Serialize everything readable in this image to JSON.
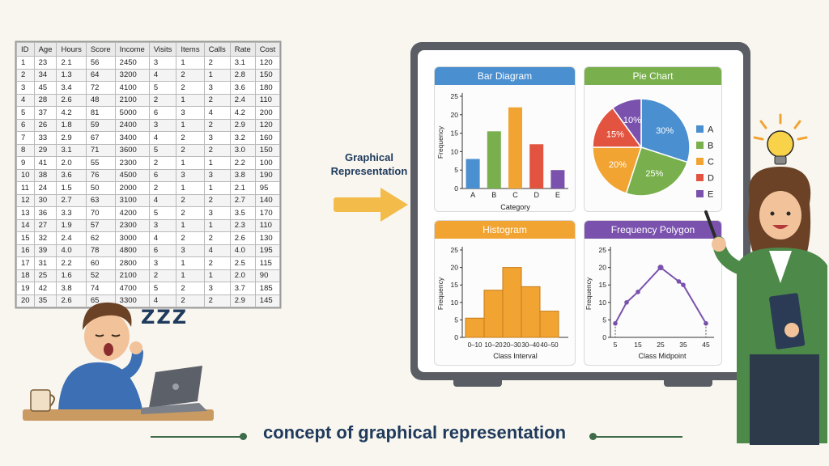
{
  "table": {
    "headers": [
      "ID",
      "Age",
      "Hours",
      "Score",
      "Income",
      "Visits",
      "Items",
      "Calls",
      "Rate",
      "Cost"
    ],
    "rows": [
      [
        "1",
        "23",
        "2.1",
        "56",
        "2450",
        "3",
        "1",
        "2",
        "3.1",
        "120"
      ],
      [
        "2",
        "34",
        "1.3",
        "64",
        "3200",
        "4",
        "2",
        "1",
        "2.8",
        "150"
      ],
      [
        "3",
        "45",
        "3.4",
        "72",
        "4100",
        "5",
        "2",
        "3",
        "3.6",
        "180"
      ],
      [
        "4",
        "28",
        "2.6",
        "48",
        "2100",
        "2",
        "1",
        "2",
        "2.4",
        "110"
      ],
      [
        "5",
        "37",
        "4.2",
        "81",
        "5000",
        "6",
        "3",
        "4",
        "4.2",
        "200"
      ],
      [
        "6",
        "26",
        "1.8",
        "59",
        "2400",
        "3",
        "1",
        "2",
        "2.9",
        "120"
      ],
      [
        "7",
        "33",
        "2.9",
        "67",
        "3400",
        "4",
        "2",
        "3",
        "3.2",
        "160"
      ],
      [
        "8",
        "29",
        "3.1",
        "71",
        "3600",
        "5",
        "2",
        "2",
        "3.0",
        "150"
      ],
      [
        "9",
        "41",
        "2.0",
        "55",
        "2300",
        "2",
        "1",
        "1",
        "2.2",
        "100"
      ],
      [
        "10",
        "38",
        "3.6",
        "76",
        "4500",
        "6",
        "3",
        "3",
        "3.8",
        "190"
      ],
      [
        "11",
        "24",
        "1.5",
        "50",
        "2000",
        "2",
        "1",
        "1",
        "2.1",
        "95"
      ],
      [
        "12",
        "30",
        "2.7",
        "63",
        "3100",
        "4",
        "2",
        "2",
        "2.7",
        "140"
      ],
      [
        "13",
        "36",
        "3.3",
        "70",
        "4200",
        "5",
        "2",
        "3",
        "3.5",
        "170"
      ],
      [
        "14",
        "27",
        "1.9",
        "57",
        "2300",
        "3",
        "1",
        "1",
        "2.3",
        "110"
      ],
      [
        "15",
        "32",
        "2.4",
        "62",
        "3000",
        "4",
        "2",
        "2",
        "2.6",
        "130"
      ],
      [
        "16",
        "39",
        "4.0",
        "78",
        "4800",
        "6",
        "3",
        "4",
        "4.0",
        "195"
      ],
      [
        "17",
        "31",
        "2.2",
        "60",
        "2800",
        "3",
        "1",
        "2",
        "2.5",
        "115"
      ],
      [
        "18",
        "25",
        "1.6",
        "52",
        "2100",
        "2",
        "1",
        "1",
        "2.0",
        "90"
      ],
      [
        "19",
        "42",
        "3.8",
        "74",
        "4700",
        "5",
        "2",
        "3",
        "3.7",
        "185"
      ],
      [
        "20",
        "35",
        "2.6",
        "65",
        "3300",
        "4",
        "2",
        "2",
        "2.9",
        "145"
      ]
    ]
  },
  "sleep_text": "ZZZ",
  "arrow_label": "Graphical Representation",
  "caption": "concept of graphical representation",
  "colors": {
    "blue": "#4a8fd0",
    "green": "#79b04d",
    "orange": "#f2a433",
    "red": "#e2543f",
    "purple": "#7a52ae",
    "navy": "#1f3a5c",
    "board": "#5a5d63"
  },
  "chart_data": [
    {
      "type": "bar",
      "title": "Bar Diagram",
      "xlabel": "Category",
      "ylabel": "Frequency",
      "categories": [
        "A",
        "B",
        "C",
        "D",
        "E"
      ],
      "values": [
        8,
        15.5,
        22,
        12,
        5
      ],
      "ylim": [
        0,
        25
      ],
      "yticks": [
        0,
        5,
        10,
        15,
        20,
        25
      ],
      "grid": false
    },
    {
      "type": "pie",
      "title": "Pie Chart",
      "labels": [
        "A",
        "B",
        "C",
        "D",
        "E"
      ],
      "values": [
        30,
        25,
        20,
        15,
        10
      ],
      "value_labels": [
        "30%",
        "25%",
        "20%",
        "15%",
        "10%"
      ],
      "legend": "right"
    },
    {
      "type": "bar",
      "title": "Histogram",
      "xlabel": "Class Interval",
      "ylabel": "Frequency",
      "categories": [
        "0–10",
        "10–20",
        "20–30",
        "30–40",
        "40–50"
      ],
      "values": [
        5.5,
        13.5,
        20,
        14.5,
        7.5
      ],
      "ylim": [
        0,
        25
      ],
      "yticks": [
        0,
        5,
        10,
        15,
        20,
        25
      ],
      "grid": false
    },
    {
      "type": "line",
      "title": "Frequency Polygon",
      "xlabel": "Class Midpoint",
      "ylabel": "Frequency",
      "x": [
        5,
        10,
        15,
        25,
        33,
        35,
        45
      ],
      "y": [
        4,
        10,
        13,
        20,
        16,
        15,
        4
      ],
      "xticks": [
        "5",
        "15",
        "25",
        "35",
        "45"
      ],
      "ylim": [
        0,
        25
      ],
      "yticks": [
        0,
        5,
        10,
        15,
        20,
        25
      ],
      "grid": false
    }
  ]
}
